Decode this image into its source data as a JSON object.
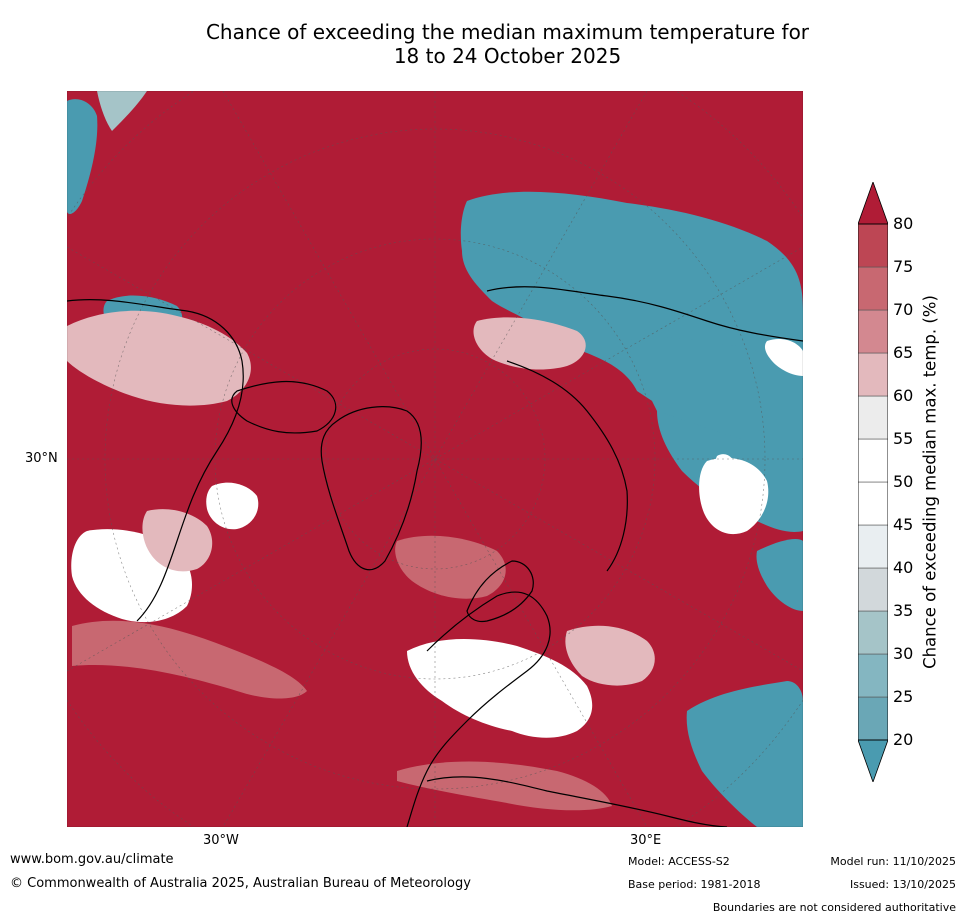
{
  "title": {
    "line1": "Chance of exceeding the median maximum temperature for",
    "line2": "18 to 24 October 2025"
  },
  "axes": {
    "lat_label": "30°N",
    "lon_left": "30°W",
    "lon_right": "30°E"
  },
  "colorbar": {
    "label": "Chance of exceeding median max. temp. (%)",
    "ticks": [
      "20",
      "25",
      "30",
      "35",
      "40",
      "45",
      "50",
      "55",
      "60",
      "65",
      "70",
      "75",
      "80"
    ],
    "colors": [
      "#6aa7b6",
      "#84b6c1",
      "#a5c4c8",
      "#d2d8db",
      "#e9eef1",
      "#ffffff",
      "#ffffff",
      "#ececec",
      "#e3b9bd",
      "#d38890",
      "#c86871",
      "#bd4654"
    ],
    "under_color": "#4a9bb0",
    "over_color": "#b01c36"
  },
  "map_colors": {
    "above": "#b01c36",
    "above_mid": "#c86871",
    "above_light": "#e3b9bd",
    "neutral": "#ffffff",
    "below": "#4a9bb0",
    "below_light": "#a5c4c8"
  },
  "footer": {
    "website": "www.bom.gov.au/climate",
    "copyright": "© Commonwealth of Australia 2025, Australian Bureau of Meteorology",
    "model": "Model: ACCESS-S2",
    "base_period": "Base period: 1981-2018",
    "model_run": "Model run: 11/10/2025",
    "issued": "Issued: 13/10/2025",
    "disclaimer": "Boundaries are not considered authoritative"
  }
}
